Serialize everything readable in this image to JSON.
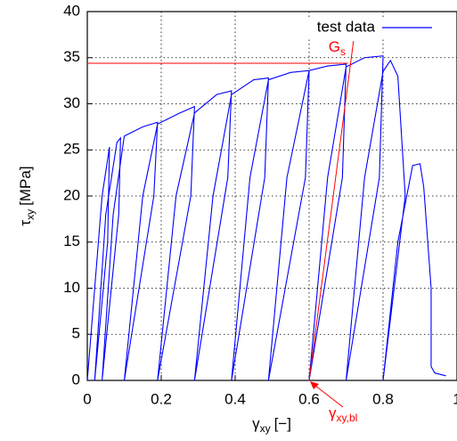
{
  "chart_data": {
    "type": "line",
    "xlabel": {
      "main": "γ",
      "sub": "xy",
      "unit": "[−]"
    },
    "ylabel": {
      "main": "τ",
      "sub": "xy",
      "unit": "[MPa]"
    },
    "xlim": [
      0,
      1
    ],
    "ylim": [
      0,
      40
    ],
    "xticks": [
      0,
      0.2,
      0.4,
      0.6,
      0.8,
      1
    ],
    "yticks": [
      0,
      5,
      10,
      15,
      20,
      25,
      30,
      35,
      40
    ],
    "grid": true,
    "legend": "upper right",
    "series": [
      {
        "name": "test data",
        "color": "#0000ff",
        "x": [
          0,
          0.04,
          0.06,
          0.055,
          0.02,
          0.05,
          0.08,
          0.09,
          0.085,
          0.04,
          0.07,
          0.1,
          0.15,
          0.19,
          0.18,
          0.1,
          0.15,
          0.19,
          0.25,
          0.29,
          0.28,
          0.19,
          0.24,
          0.29,
          0.35,
          0.39,
          0.38,
          0.29,
          0.34,
          0.39,
          0.45,
          0.49,
          0.48,
          0.39,
          0.44,
          0.49,
          0.55,
          0.6,
          0.59,
          0.49,
          0.54,
          0.6,
          0.65,
          0.7,
          0.69,
          0.6,
          0.65,
          0.7,
          0.75,
          0.8,
          0.79,
          0.7,
          0.75,
          0.8,
          0.82,
          0.84,
          0.86,
          0.8,
          0.84,
          0.88,
          0.9,
          0.91,
          0.93,
          0.93,
          0.94,
          0.97
        ],
        "values": [
          0,
          20,
          25.3,
          15,
          0,
          18,
          25.8,
          26.3,
          18,
          0,
          18,
          26.5,
          27.5,
          28,
          20,
          0,
          20,
          27.8,
          29,
          29.7,
          20,
          0,
          20,
          29,
          31,
          31.4,
          22,
          0,
          20,
          31,
          32.6,
          32.8,
          22,
          0,
          22,
          32.6,
          33.4,
          33.6,
          22,
          0,
          22,
          33.6,
          34.1,
          34.3,
          22,
          0,
          22,
          34,
          35,
          35.2,
          22,
          0,
          22,
          33.5,
          34.7,
          33,
          20,
          0,
          15,
          23.3,
          23.5,
          21,
          10,
          1.5,
          0.8,
          0.5
        ]
      }
    ],
    "annotations": {
      "color": "#ff0000",
      "hline": {
        "y": 34.4,
        "x": [
          0,
          0.705
        ]
      },
      "slope_line": {
        "x": [
          0.6,
          0.72
        ],
        "y": [
          0,
          36.8
        ]
      },
      "slope_label": {
        "main": "G",
        "sub": "s"
      },
      "strain_label": {
        "main": "γ",
        "sub": "xy,bl"
      }
    }
  }
}
